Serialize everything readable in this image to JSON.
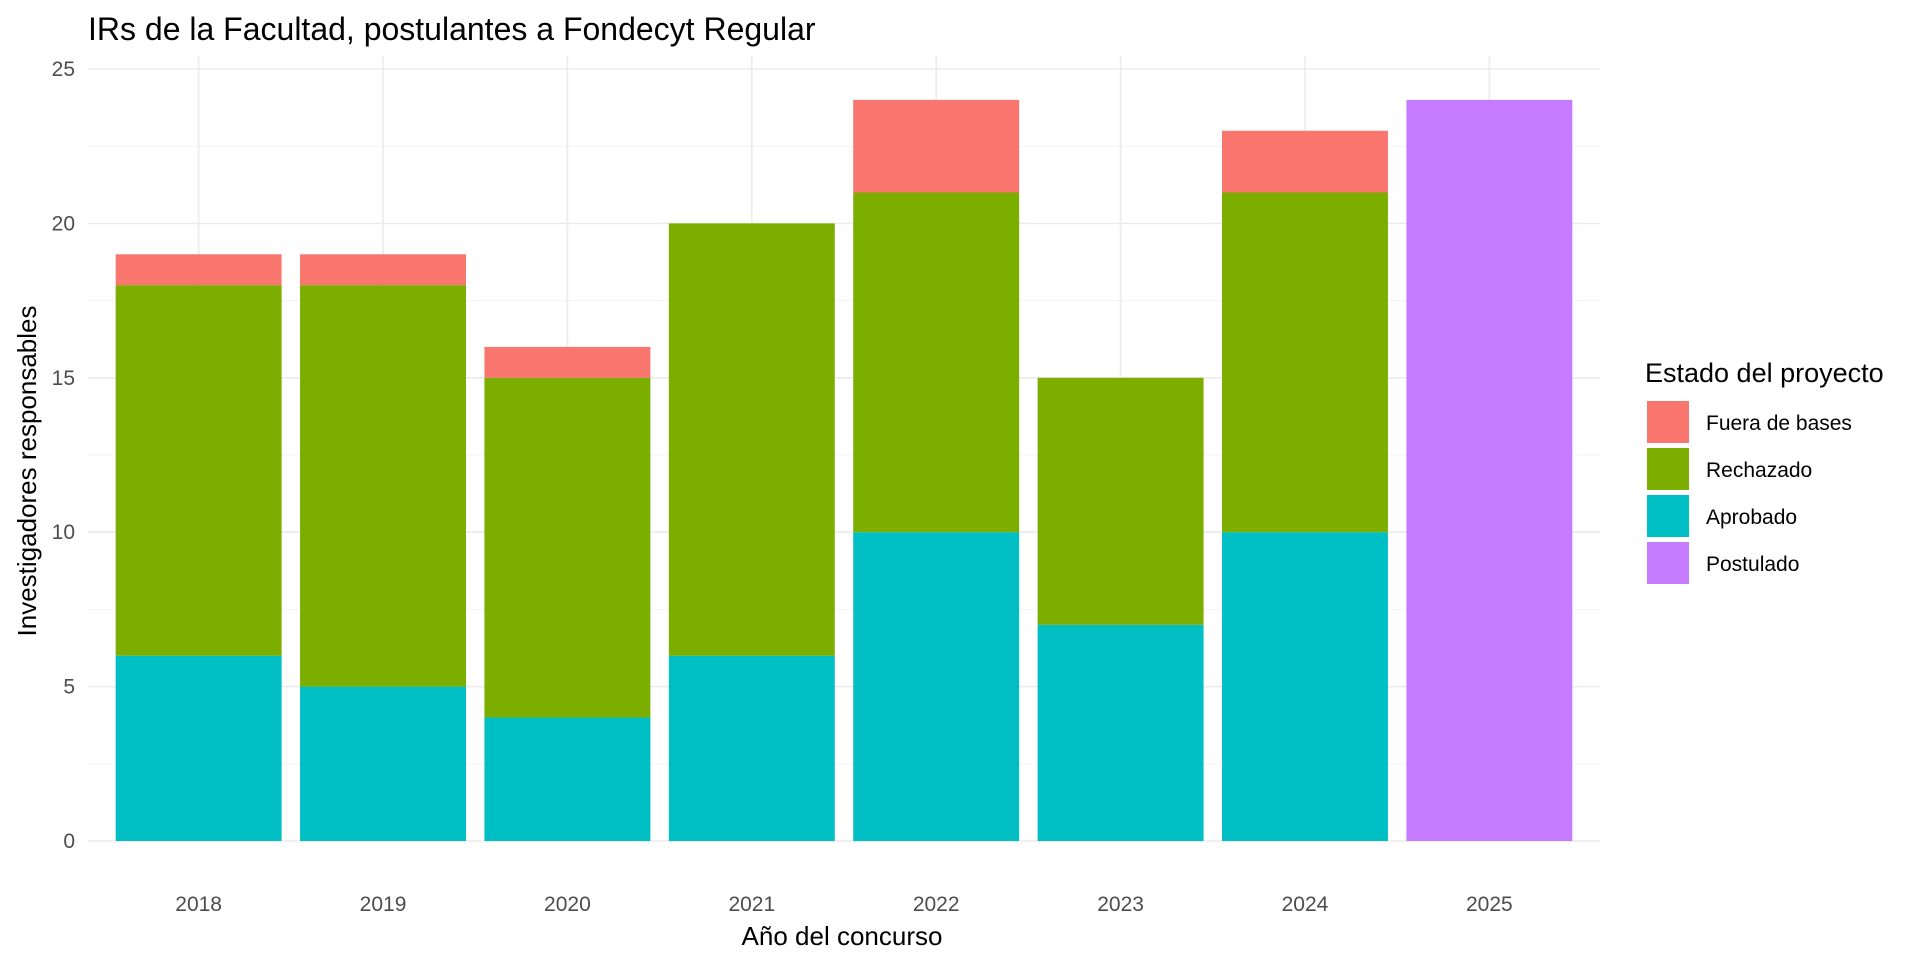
{
  "chart_data": {
    "type": "bar",
    "stacked": true,
    "title": "IRs de la Facultad, postulantes a Fondecyt Regular",
    "xlabel": "Año del concurso",
    "ylabel": "Investigadores responsables",
    "categories": [
      "2018",
      "2019",
      "2020",
      "2021",
      "2022",
      "2023",
      "2024",
      "2025"
    ],
    "ylim": [
      0,
      25
    ],
    "yticks": [
      0,
      5,
      10,
      15,
      20,
      25
    ],
    "ytick_labels": [
      "0",
      "5",
      "10",
      "15",
      "20",
      "25"
    ],
    "grid": true,
    "legend": {
      "title": "Estado del proyecto",
      "placement": "right"
    },
    "series": [
      {
        "name": "Fuera de bases",
        "color": "#F8766D",
        "values": [
          1,
          1,
          1,
          0,
          3,
          0,
          2,
          0
        ]
      },
      {
        "name": "Rechazado",
        "color": "#7CAE00",
        "values": [
          12,
          13,
          11,
          14,
          11,
          8,
          11,
          0
        ]
      },
      {
        "name": "Aprobado",
        "color": "#00BFC4",
        "values": [
          6,
          5,
          4,
          6,
          10,
          7,
          10,
          0
        ]
      },
      {
        "name": "Postulado",
        "color": "#C77CFF",
        "values": [
          0,
          0,
          0,
          0,
          0,
          0,
          0,
          24
        ]
      }
    ]
  }
}
